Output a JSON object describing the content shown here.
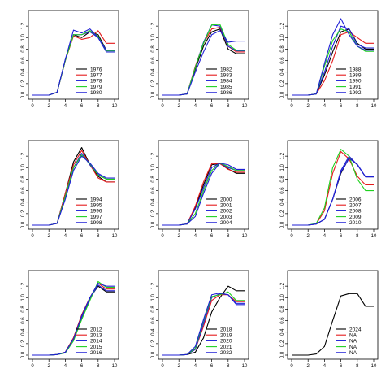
{
  "colors": {
    "black": "#000000",
    "red": "#e41a1c",
    "green": "#1fd11f",
    "blue": "#1f1fd6"
  },
  "chart_data": [
    {
      "type": "line",
      "x": [
        0,
        1,
        2,
        3,
        4,
        5,
        6,
        7,
        8,
        9,
        10
      ],
      "xticks": [
        0,
        2,
        4,
        6,
        8,
        10
      ],
      "yticks": [
        0.0,
        0.2,
        0.4,
        0.6,
        0.8,
        1.0,
        1.2
      ],
      "xlim": [
        0,
        10
      ],
      "ylim": [
        0,
        1.4
      ],
      "series": [
        {
          "name": "1976",
          "color": "black",
          "values": [
            0,
            0,
            0,
            0.05,
            0.6,
            1.05,
            1.0,
            1.1,
            1.05,
            0.78,
            0.78
          ]
        },
        {
          "name": "1977",
          "color": "red",
          "values": [
            0,
            0,
            0,
            0.05,
            0.6,
            1.03,
            0.97,
            1.0,
            1.12,
            0.9,
            0.9
          ]
        },
        {
          "name": "1978",
          "color": "blue",
          "values": [
            0,
            0,
            0,
            0.05,
            0.62,
            1.05,
            1.05,
            1.1,
            1.0,
            0.75,
            0.75
          ]
        },
        {
          "name": "1979",
          "color": "green",
          "values": [
            0,
            0,
            0,
            0.05,
            0.6,
            1.05,
            1.05,
            1.12,
            1.02,
            0.77,
            0.77
          ]
        },
        {
          "name": "1980",
          "color": "blue",
          "values": [
            0,
            0,
            0,
            0.05,
            0.62,
            1.13,
            1.08,
            1.15,
            1.0,
            0.78,
            0.78
          ]
        }
      ]
    },
    {
      "type": "line",
      "x": [
        0,
        1,
        2,
        3,
        4,
        5,
        6,
        7,
        8,
        9,
        10
      ],
      "xticks": [
        0,
        2,
        4,
        6,
        8,
        10
      ],
      "yticks": [
        0.0,
        0.2,
        0.4,
        0.6,
        0.8,
        1.0,
        1.2
      ],
      "xlim": [
        0,
        10
      ],
      "ylim": [
        0,
        1.4
      ],
      "series": [
        {
          "name": "1982",
          "color": "black",
          "values": [
            0,
            0,
            0,
            0.02,
            0.45,
            0.85,
            1.1,
            1.15,
            0.8,
            0.72,
            0.72
          ]
        },
        {
          "name": "1983",
          "color": "red",
          "values": [
            0,
            0,
            0,
            0.02,
            0.5,
            0.9,
            1.15,
            1.18,
            0.85,
            0.75,
            0.75
          ]
        },
        {
          "name": "1984",
          "color": "blue",
          "values": [
            0,
            0,
            0,
            0.02,
            0.48,
            0.92,
            1.22,
            1.2,
            0.85,
            0.77,
            0.77
          ]
        },
        {
          "name": "1985",
          "color": "green",
          "values": [
            0,
            0,
            0,
            0.02,
            0.48,
            0.9,
            1.22,
            1.23,
            0.88,
            0.78,
            0.78
          ]
        },
        {
          "name": "1986",
          "color": "blue",
          "values": [
            0,
            0,
            0,
            0.02,
            0.4,
            0.75,
            1.05,
            1.12,
            0.92,
            0.94,
            0.94
          ]
        }
      ]
    },
    {
      "type": "line",
      "x": [
        0,
        1,
        2,
        3,
        4,
        5,
        6,
        7,
        8,
        9,
        10
      ],
      "xticks": [
        0,
        2,
        4,
        6,
        8,
        10
      ],
      "yticks": [
        0.0,
        0.2,
        0.4,
        0.6,
        0.8,
        1.0,
        1.2
      ],
      "xlim": [
        0,
        10
      ],
      "ylim": [
        0,
        1.4
      ],
      "series": [
        {
          "name": "1988",
          "color": "black",
          "values": [
            0,
            0,
            0,
            0.02,
            0.35,
            0.75,
            1.1,
            1.15,
            0.9,
            0.8,
            0.8
          ]
        },
        {
          "name": "1989",
          "color": "red",
          "values": [
            0,
            0,
            0,
            0.02,
            0.25,
            0.6,
            1.05,
            1.1,
            1.0,
            0.9,
            0.9
          ]
        },
        {
          "name": "1990",
          "color": "blue",
          "values": [
            0,
            0,
            0,
            0.02,
            0.4,
            0.85,
            1.2,
            1.15,
            0.88,
            0.82,
            0.82
          ]
        },
        {
          "name": "1991",
          "color": "green",
          "values": [
            0,
            0,
            0,
            0.02,
            0.5,
            0.95,
            1.15,
            1.1,
            0.85,
            0.76,
            0.76
          ]
        },
        {
          "name": "1992",
          "color": "blue",
          "values": [
            0,
            0,
            0,
            0.02,
            0.55,
            1.05,
            1.33,
            1.05,
            0.85,
            0.78,
            0.78
          ]
        }
      ]
    },
    {
      "type": "line",
      "x": [
        0,
        1,
        2,
        3,
        4,
        5,
        6,
        7,
        8,
        9,
        10
      ],
      "xticks": [
        0,
        2,
        4,
        6,
        8,
        10
      ],
      "yticks": [
        0.0,
        0.2,
        0.4,
        0.6,
        0.8,
        1.0,
        1.2
      ],
      "xlim": [
        0,
        10
      ],
      "ylim": [
        0,
        1.4
      ],
      "series": [
        {
          "name": "1994",
          "color": "black",
          "values": [
            0,
            0,
            0,
            0.03,
            0.55,
            1.1,
            1.35,
            1.05,
            0.85,
            0.75,
            0.75
          ]
        },
        {
          "name": "1995",
          "color": "red",
          "values": [
            0,
            0,
            0,
            0.03,
            0.55,
            1.05,
            1.3,
            1.05,
            0.82,
            0.75,
            0.75
          ]
        },
        {
          "name": "1996",
          "color": "blue",
          "values": [
            0,
            0,
            0,
            0.03,
            0.5,
            1.0,
            1.25,
            1.05,
            0.88,
            0.8,
            0.8
          ]
        },
        {
          "name": "1997",
          "color": "green",
          "values": [
            0,
            0,
            0,
            0.03,
            0.5,
            1.0,
            1.22,
            1.07,
            0.87,
            0.8,
            0.8
          ]
        },
        {
          "name": "1998",
          "color": "blue",
          "values": [
            0,
            0,
            0,
            0.03,
            0.45,
            0.95,
            1.2,
            1.08,
            0.9,
            0.82,
            0.82
          ]
        }
      ]
    },
    {
      "type": "line",
      "x": [
        0,
        1,
        2,
        3,
        4,
        5,
        6,
        7,
        8,
        9,
        10
      ],
      "xticks": [
        0,
        2,
        4,
        6,
        8,
        10
      ],
      "yticks": [
        0.0,
        0.2,
        0.4,
        0.6,
        0.8,
        1.0,
        1.2
      ],
      "xlim": [
        0,
        10
      ],
      "ylim": [
        0,
        1.4
      ],
      "series": [
        {
          "name": "2000",
          "color": "black",
          "values": [
            0,
            0,
            0,
            0.02,
            0.3,
            0.7,
            1.05,
            1.07,
            0.98,
            0.9,
            0.9
          ]
        },
        {
          "name": "2001",
          "color": "red",
          "values": [
            0,
            0,
            0,
            0.02,
            0.33,
            0.75,
            1.07,
            1.07,
            0.97,
            0.92,
            0.92
          ]
        },
        {
          "name": "2002",
          "color": "blue",
          "values": [
            0,
            0,
            0,
            0.02,
            0.28,
            0.65,
            1.0,
            1.08,
            1.0,
            0.95,
            0.95
          ]
        },
        {
          "name": "2003",
          "color": "green",
          "values": [
            0,
            0,
            0,
            0.02,
            0.2,
            0.6,
            0.95,
            1.08,
            1.02,
            0.95,
            0.95
          ]
        },
        {
          "name": "2004",
          "color": "blue",
          "values": [
            0,
            0,
            0,
            0.02,
            0.15,
            0.55,
            0.9,
            1.08,
            1.05,
            0.97,
            0.97
          ]
        }
      ]
    },
    {
      "type": "line",
      "x": [
        0,
        1,
        2,
        3,
        4,
        5,
        6,
        7,
        8,
        9,
        10
      ],
      "xticks": [
        0,
        2,
        4,
        6,
        8,
        10
      ],
      "yticks": [
        0.0,
        0.2,
        0.4,
        0.6,
        0.8,
        1.0,
        1.2
      ],
      "xlim": [
        0,
        10
      ],
      "ylim": [
        0,
        1.4
      ],
      "series": [
        {
          "name": "2006",
          "color": "black",
          "values": [
            0,
            0,
            0,
            0.02,
            0.1,
            0.45,
            0.9,
            1.17,
            1.05,
            0.84,
            0.84
          ]
        },
        {
          "name": "2007",
          "color": "red",
          "values": [
            0,
            0,
            0,
            0.02,
            0.25,
            0.9,
            1.28,
            1.15,
            0.85,
            0.7,
            0.7
          ]
        },
        {
          "name": "2008",
          "color": "blue",
          "values": [
            0,
            0,
            0,
            0.02,
            0.1,
            0.45,
            0.95,
            1.2,
            1.05,
            0.84,
            0.84
          ]
        },
        {
          "name": "2009",
          "color": "green",
          "values": [
            0,
            0,
            0,
            0.03,
            0.3,
            1.0,
            1.32,
            1.2,
            0.8,
            0.6,
            0.6
          ]
        },
        {
          "name": "2010",
          "color": "blue",
          "values": [
            0,
            0,
            0,
            0.02,
            0.1,
            0.45,
            0.92,
            1.16,
            1.06,
            0.84,
            0.84
          ]
        }
      ]
    },
    {
      "type": "line",
      "x": [
        0,
        1,
        2,
        3,
        4,
        5,
        6,
        7,
        8,
        9,
        10
      ],
      "xticks": [
        0,
        2,
        4,
        6,
        8,
        10
      ],
      "yticks": [
        0.0,
        0.2,
        0.4,
        0.6,
        0.8,
        1.0,
        1.2
      ],
      "xlim": [
        0,
        10
      ],
      "ylim": [
        0,
        1.4
      ],
      "series": [
        {
          "name": "2012",
          "color": "black",
          "values": [
            0,
            0,
            0,
            0.01,
            0.05,
            0.3,
            0.7,
            1.0,
            1.2,
            1.1,
            1.1
          ]
        },
        {
          "name": "2013",
          "color": "red",
          "values": [
            0,
            0,
            0,
            0.01,
            0.05,
            0.3,
            0.7,
            1.0,
            1.25,
            1.15,
            1.15
          ]
        },
        {
          "name": "2014",
          "color": "blue",
          "values": [
            0,
            0,
            0,
            0.01,
            0.04,
            0.25,
            0.65,
            0.98,
            1.22,
            1.12,
            1.12
          ]
        },
        {
          "name": "2015",
          "color": "green",
          "values": [
            0,
            0,
            0,
            0.01,
            0.04,
            0.25,
            0.62,
            0.95,
            1.28,
            1.18,
            1.18
          ]
        },
        {
          "name": "2016",
          "color": "blue",
          "values": [
            0,
            0,
            0,
            0.01,
            0.05,
            0.28,
            0.68,
            1.0,
            1.25,
            1.2,
            1.2
          ]
        }
      ]
    },
    {
      "type": "line",
      "x": [
        0,
        1,
        2,
        3,
        4,
        5,
        6,
        7,
        8,
        9,
        10
      ],
      "xticks": [
        0,
        2,
        4,
        6,
        8,
        10
      ],
      "yticks": [
        0.0,
        0.2,
        0.4,
        0.6,
        0.8,
        1.0,
        1.2
      ],
      "xlim": [
        0,
        10
      ],
      "ylim": [
        0,
        1.4
      ],
      "series": [
        {
          "name": "2018",
          "color": "black",
          "values": [
            0,
            0,
            0,
            0.01,
            0.05,
            0.3,
            0.75,
            1.0,
            1.2,
            1.12,
            1.12
          ]
        },
        {
          "name": "2019",
          "color": "red",
          "values": [
            0,
            0,
            0,
            0.01,
            0.1,
            0.5,
            0.95,
            1.05,
            1.05,
            0.93,
            0.93
          ]
        },
        {
          "name": "2020",
          "color": "blue",
          "values": [
            0,
            0,
            0,
            0.01,
            0.1,
            0.55,
            1.0,
            1.07,
            1.05,
            0.88,
            0.88
          ]
        },
        {
          "name": "2021",
          "color": "green",
          "values": [
            0,
            0,
            0,
            0.01,
            0.12,
            0.6,
            1.02,
            1.05,
            1.1,
            0.95,
            0.95
          ]
        },
        {
          "name": "2022",
          "color": "blue",
          "values": [
            0,
            0,
            0,
            0.01,
            0.15,
            0.62,
            1.05,
            1.08,
            1.05,
            0.9,
            0.9
          ]
        }
      ]
    },
    {
      "type": "line",
      "x": [
        0,
        1,
        2,
        3,
        4,
        5,
        6,
        7,
        8,
        9,
        10
      ],
      "xticks": [
        0,
        2,
        4,
        6,
        8,
        10
      ],
      "yticks": [
        0.0,
        0.2,
        0.4,
        0.6,
        0.8,
        1.0,
        1.2
      ],
      "xlim": [
        0,
        10
      ],
      "ylim": [
        0,
        1.4
      ],
      "series": [
        {
          "name": "2024",
          "color": "black",
          "values": [
            0,
            0,
            0,
            0.02,
            0.15,
            0.6,
            1.03,
            1.07,
            1.07,
            0.85,
            0.85
          ]
        },
        {
          "name": "NA",
          "color": "red",
          "values": null
        },
        {
          "name": "NA",
          "color": "blue",
          "values": null
        },
        {
          "name": "NA",
          "color": "green",
          "values": null
        },
        {
          "name": "NA",
          "color": "blue",
          "values": null
        }
      ]
    }
  ]
}
